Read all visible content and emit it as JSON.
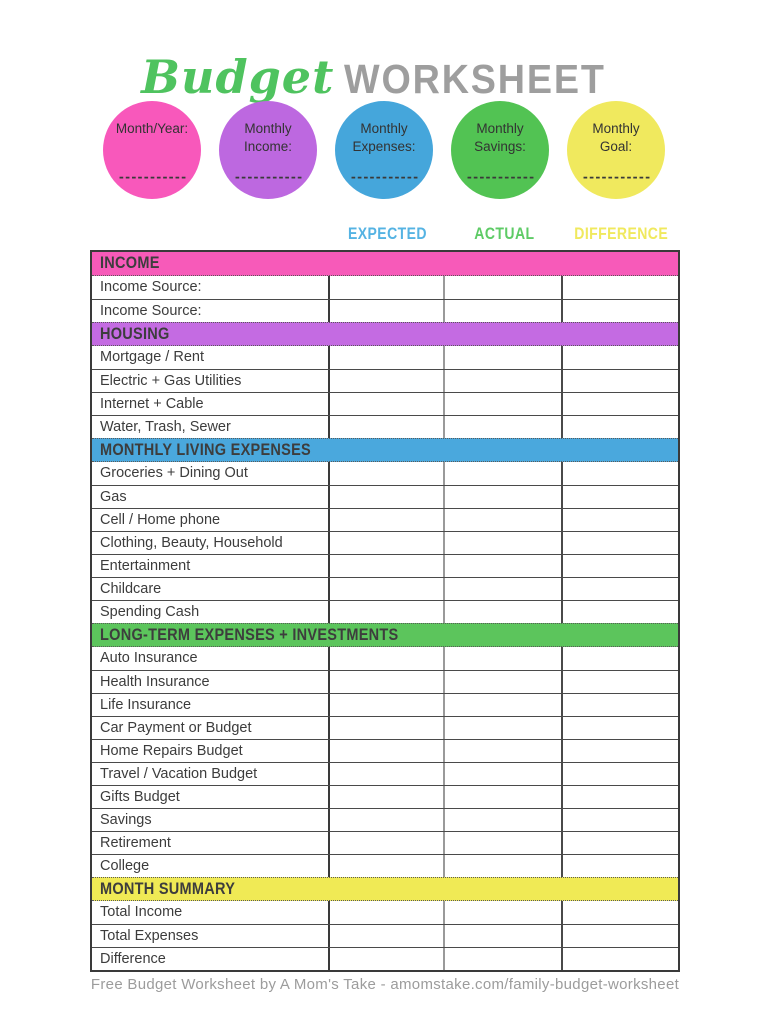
{
  "title": {
    "script": "Budget",
    "block": "WORKSHEET"
  },
  "circles": [
    {
      "name": "month-year",
      "label": "Month/Year:",
      "color": "#f858bb",
      "placeholder": "-----------"
    },
    {
      "name": "monthly-income",
      "label": "Monthly Income:",
      "color": "#bd68e0",
      "placeholder": "-----------"
    },
    {
      "name": "monthly-expenses",
      "label": "Monthly Expenses:",
      "color": "#45a6db",
      "placeholder": "-----------"
    },
    {
      "name": "monthly-savings",
      "label": "Monthly Savings:",
      "color": "#52c353",
      "placeholder": "-----------"
    },
    {
      "name": "monthly-goal",
      "label": "Monthly Goal:",
      "color": "#f0e95e",
      "placeholder": "-----------"
    }
  ],
  "columns": [
    {
      "name": "expected",
      "label": "EXPECTED",
      "color": "#55b3e3"
    },
    {
      "name": "actual",
      "label": "ACTUAL",
      "color": "#5ecb66"
    },
    {
      "name": "difference",
      "label": "DIFFERENCE",
      "color": "#f0e95e"
    }
  ],
  "table": {
    "sections": [
      {
        "name": "income",
        "label": "INCOME",
        "color": "#f75ab9",
        "rows": [
          "Income Source:",
          "Income Source:"
        ]
      },
      {
        "name": "housing",
        "label": "HOUSING",
        "color": "#c46be2",
        "rows": [
          "Mortgage / Rent",
          "Electric + Gas Utilities",
          "Internet + Cable",
          "Water, Trash, Sewer"
        ]
      },
      {
        "name": "monthly-living-expenses",
        "label": "MONTHLY LIVING EXPENSES",
        "color": "#4aa8dd",
        "rows": [
          "Groceries + Dining Out",
          "Gas",
          "Cell / Home phone",
          "Clothing, Beauty, Household",
          "Entertainment",
          "Childcare",
          "Spending Cash"
        ]
      },
      {
        "name": "long-term-expenses-investments",
        "label": "LONG-TERM EXPENSES + INVESTMENTS",
        "color": "#5cc55c",
        "rows": [
          "Auto Insurance",
          "Health Insurance",
          "Life Insurance",
          "Car Payment or Budget",
          "Home Repairs Budget",
          "Travel / Vacation Budget",
          "Gifts Budget",
          "Savings",
          "Retirement",
          "College"
        ]
      },
      {
        "name": "month-summary",
        "label": "MONTH SUMMARY",
        "color": "#f0ea55",
        "rows": [
          "Total Income",
          "Total Expenses",
          "Difference"
        ]
      }
    ]
  },
  "footer": {
    "text": "Free Budget Worksheet by A Mom's Take - amomstake.com/family-budget-worksheet"
  }
}
